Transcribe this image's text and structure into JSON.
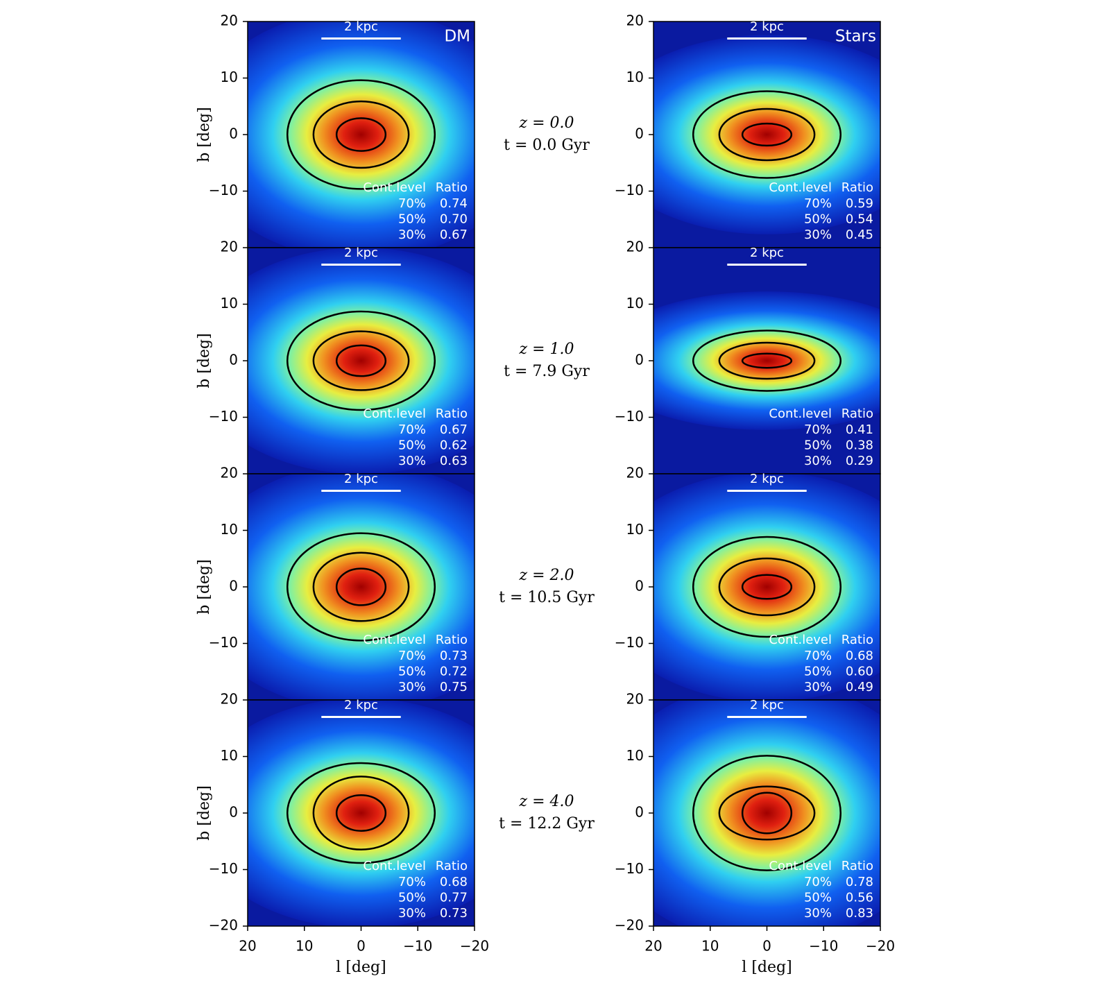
{
  "chart_data": [
    {
      "type": "density_map",
      "label": "DM",
      "scale_bar": "2 kpc",
      "xlim": [
        20,
        -20
      ],
      "ylim": [
        -20,
        20
      ],
      "yticks": [
        {
          "value": -10,
          "label": "−10"
        },
        0,
        10,
        20
      ],
      "ylabel": "b [deg]",
      "contour_table": {
        "columns": [
          "Cont.level",
          "Ratio"
        ],
        "levels": [
          70,
          50,
          30
        ],
        "level_labels": [
          "70%",
          "50%",
          "30%"
        ],
        "ratios": [
          0.74,
          0.7,
          0.67
        ],
        "ratio_labels": [
          "0.74",
          "0.70",
          "0.67"
        ]
      }
    },
    {
      "type": "density_map",
      "label": "Stars",
      "scale_bar": "2 kpc",
      "xlim": [
        20,
        -20
      ],
      "ylim": [
        -20,
        20
      ],
      "yticks": [
        {
          "value": -10,
          "label": "−10"
        },
        0,
        10,
        20
      ],
      "contour_table": {
        "columns": [
          "Cont.level",
          "Ratio"
        ],
        "levels": [
          70,
          50,
          30
        ],
        "level_labels": [
          "70%",
          "50%",
          "30%"
        ],
        "ratios": [
          0.59,
          0.54,
          0.45
        ],
        "ratio_labels": [
          "0.59",
          "0.54",
          "0.45"
        ]
      }
    },
    {
      "type": "density_map",
      "scale_bar": "2 kpc",
      "xlim": [
        20,
        -20
      ],
      "ylim": [
        -20,
        20
      ],
      "yticks": [
        {
          "value": -10,
          "label": "−10"
        },
        0,
        10,
        20
      ],
      "ylabel": "b [deg]",
      "contour_table": {
        "columns": [
          "Cont.level",
          "Ratio"
        ],
        "levels": [
          70,
          50,
          30
        ],
        "level_labels": [
          "70%",
          "50%",
          "30%"
        ],
        "ratios": [
          0.67,
          0.62,
          0.63
        ],
        "ratio_labels": [
          "0.67",
          "0.62",
          "0.63"
        ]
      }
    },
    {
      "type": "density_map",
      "scale_bar": "2 kpc",
      "xlim": [
        20,
        -20
      ],
      "ylim": [
        -20,
        20
      ],
      "yticks": [
        {
          "value": -10,
          "label": "−10"
        },
        0,
        10,
        20
      ],
      "contour_table": {
        "columns": [
          "Cont.level",
          "Ratio"
        ],
        "levels": [
          70,
          50,
          30
        ],
        "level_labels": [
          "70%",
          "50%",
          "30%"
        ],
        "ratios": [
          0.41,
          0.38,
          0.29
        ],
        "ratio_labels": [
          "0.41",
          "0.38",
          "0.29"
        ]
      }
    },
    {
      "type": "density_map",
      "scale_bar": "2 kpc",
      "xlim": [
        20,
        -20
      ],
      "ylim": [
        -20,
        20
      ],
      "yticks": [
        {
          "value": -10,
          "label": "−10"
        },
        0,
        10,
        20
      ],
      "ylabel": "b [deg]",
      "contour_table": {
        "columns": [
          "Cont.level",
          "Ratio"
        ],
        "levels": [
          70,
          50,
          30
        ],
        "level_labels": [
          "70%",
          "50%",
          "30%"
        ],
        "ratios": [
          0.73,
          0.72,
          0.75
        ],
        "ratio_labels": [
          "0.73",
          "0.72",
          "0.75"
        ]
      }
    },
    {
      "type": "density_map",
      "scale_bar": "2 kpc",
      "xlim": [
        20,
        -20
      ],
      "ylim": [
        -20,
        20
      ],
      "yticks": [
        {
          "value": -10,
          "label": "−10"
        },
        0,
        10,
        20
      ],
      "contour_table": {
        "columns": [
          "Cont.level",
          "Ratio"
        ],
        "levels": [
          70,
          50,
          30
        ],
        "level_labels": [
          "70%",
          "50%",
          "30%"
        ],
        "ratios": [
          0.68,
          0.6,
          0.49
        ],
        "ratio_labels": [
          "0.68",
          "0.60",
          "0.49"
        ]
      }
    },
    {
      "type": "density_map",
      "scale_bar": "2 kpc",
      "xlim": [
        20,
        -20
      ],
      "ylim": [
        -20,
        20
      ],
      "yticks": [
        {
          "value": -20,
          "label": "−20"
        },
        {
          "value": -10,
          "label": "−10"
        },
        0,
        10,
        20
      ],
      "ylabel": "b [deg]",
      "xticks": [
        20,
        10,
        0,
        {
          "value": -10,
          "label": "−10"
        },
        {
          "value": -20,
          "label": "−20"
        }
      ],
      "xlabel": "l [deg]",
      "contour_table": {
        "columns": [
          "Cont.level",
          "Ratio"
        ],
        "levels": [
          70,
          50,
          30
        ],
        "level_labels": [
          "70%",
          "50%",
          "30%"
        ],
        "ratios": [
          0.68,
          0.77,
          0.73
        ],
        "ratio_labels": [
          "0.68",
          "0.77",
          "0.73"
        ]
      }
    },
    {
      "type": "density_map",
      "scale_bar": "2 kpc",
      "xlim": [
        20,
        -20
      ],
      "ylim": [
        -20,
        20
      ],
      "yticks": [
        {
          "value": -20,
          "label": "−20"
        },
        {
          "value": -10,
          "label": "−10"
        },
        0,
        10,
        20
      ],
      "xticks": [
        20,
        10,
        0,
        {
          "value": -10,
          "label": "−10"
        },
        {
          "value": -20,
          "label": "−20"
        }
      ],
      "xlabel": "l [deg]",
      "contour_table": {
        "columns": [
          "Cont.level",
          "Ratio"
        ],
        "levels": [
          70,
          50,
          30
        ],
        "level_labels": [
          "70%",
          "50%",
          "30%"
        ],
        "ratios": [
          0.78,
          0.56,
          0.83
        ],
        "ratio_labels": [
          "0.78",
          "0.56",
          "0.83"
        ]
      }
    }
  ],
  "epochs": [
    {
      "z": "z = 0.0",
      "t": "t = 0.0 Gyr"
    },
    {
      "z": "z = 1.0",
      "t": "t = 7.9 Gyr"
    },
    {
      "z": "z = 2.0",
      "t": "t = 10.5 Gyr"
    },
    {
      "z": "z = 4.0",
      "t": "t = 12.2 Gyr"
    }
  ]
}
